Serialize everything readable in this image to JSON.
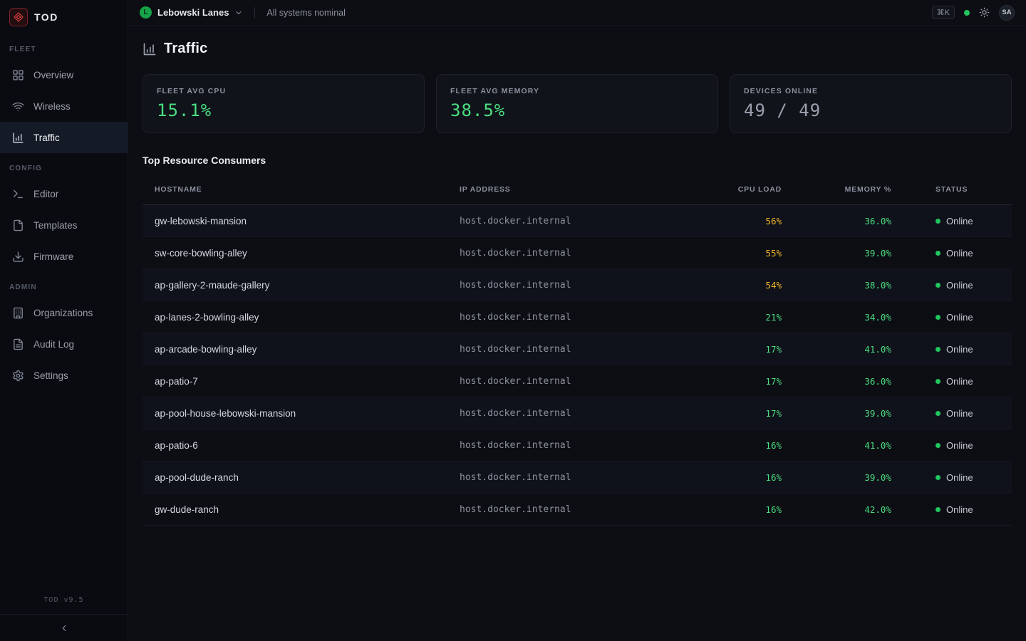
{
  "colors": {
    "accent_green": "#4ade80",
    "warn_amber": "#f0b429",
    "online_green": "#22c55e",
    "logo_red": "#ef4444"
  },
  "app": {
    "name": "TOD",
    "version": "TOD v9.5"
  },
  "sidebar": {
    "sections": [
      {
        "label": "FLEET",
        "items": [
          {
            "label": "Overview",
            "icon": "grid-icon",
            "active": false
          },
          {
            "label": "Wireless",
            "icon": "wifi-icon",
            "active": false
          },
          {
            "label": "Traffic",
            "icon": "bar-chart-icon",
            "active": true
          }
        ]
      },
      {
        "label": "CONFIG",
        "items": [
          {
            "label": "Editor",
            "icon": "terminal-icon",
            "active": false
          },
          {
            "label": "Templates",
            "icon": "file-icon",
            "active": false
          },
          {
            "label": "Firmware",
            "icon": "download-icon",
            "active": false
          }
        ]
      },
      {
        "label": "ADMIN",
        "items": [
          {
            "label": "Organizations",
            "icon": "building-icon",
            "active": false
          },
          {
            "label": "Audit Log",
            "icon": "file-text-icon",
            "active": false
          },
          {
            "label": "Settings",
            "icon": "gear-icon",
            "active": false
          }
        ]
      }
    ]
  },
  "topbar": {
    "org_initial": "L",
    "org_name": "Lebowski Lanes",
    "status_text": "All systems nominal",
    "shortcut": "⌘K",
    "user_initials": "SA"
  },
  "page": {
    "title": "Traffic",
    "stats": [
      {
        "label": "FLEET AVG CPU",
        "value": "15.1%",
        "color": "green"
      },
      {
        "label": "FLEET AVG MEMORY",
        "value": "38.5%",
        "color": "green"
      },
      {
        "label": "DEVICES ONLINE",
        "value": "49 / 49",
        "color": "gray"
      }
    ],
    "table": {
      "title": "Top Resource Consumers",
      "columns": [
        "HOSTNAME",
        "IP ADDRESS",
        "CPU LOAD",
        "MEMORY %",
        "STATUS"
      ],
      "rows": [
        {
          "hostname": "gw-lebowski-mansion",
          "ip": "host.docker.internal",
          "cpu": "56%",
          "cpu_level": "warn",
          "memory": "36.0%",
          "status": "Online"
        },
        {
          "hostname": "sw-core-bowling-alley",
          "ip": "host.docker.internal",
          "cpu": "55%",
          "cpu_level": "warn",
          "memory": "39.0%",
          "status": "Online"
        },
        {
          "hostname": "ap-gallery-2-maude-gallery",
          "ip": "host.docker.internal",
          "cpu": "54%",
          "cpu_level": "warn",
          "memory": "38.0%",
          "status": "Online"
        },
        {
          "hostname": "ap-lanes-2-bowling-alley",
          "ip": "host.docker.internal",
          "cpu": "21%",
          "cpu_level": "ok",
          "memory": "34.0%",
          "status": "Online"
        },
        {
          "hostname": "ap-arcade-bowling-alley",
          "ip": "host.docker.internal",
          "cpu": "17%",
          "cpu_level": "ok",
          "memory": "41.0%",
          "status": "Online"
        },
        {
          "hostname": "ap-patio-7",
          "ip": "host.docker.internal",
          "cpu": "17%",
          "cpu_level": "ok",
          "memory": "36.0%",
          "status": "Online"
        },
        {
          "hostname": "ap-pool-house-lebowski-mansion",
          "ip": "host.docker.internal",
          "cpu": "17%",
          "cpu_level": "ok",
          "memory": "39.0%",
          "status": "Online"
        },
        {
          "hostname": "ap-patio-6",
          "ip": "host.docker.internal",
          "cpu": "16%",
          "cpu_level": "ok",
          "memory": "41.0%",
          "status": "Online"
        },
        {
          "hostname": "ap-pool-dude-ranch",
          "ip": "host.docker.internal",
          "cpu": "16%",
          "cpu_level": "ok",
          "memory": "39.0%",
          "status": "Online"
        },
        {
          "hostname": "gw-dude-ranch",
          "ip": "host.docker.internal",
          "cpu": "16%",
          "cpu_level": "ok",
          "memory": "42.0%",
          "status": "Online"
        }
      ]
    }
  }
}
